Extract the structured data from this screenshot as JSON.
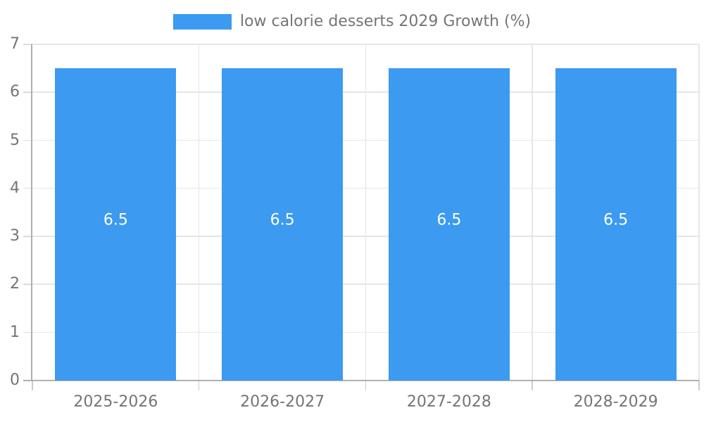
{
  "chart_data": {
    "type": "bar",
    "legend": {
      "position": "top"
    },
    "categories": [
      "2025-2026",
      "2026-2027",
      "2027-2028",
      "2028-2029"
    ],
    "series": [
      {
        "name": "low calorie desserts 2029 Growth (%)",
        "values": [
          6.5,
          6.5,
          6.5,
          6.5
        ],
        "color": "#3c9af0"
      }
    ],
    "value_labels": [
      "6.5",
      "6.5",
      "6.5",
      "6.5"
    ],
    "ylim": [
      0,
      7
    ],
    "yticks": [
      0,
      1,
      2,
      3,
      4,
      5,
      6,
      7
    ],
    "grid": true,
    "bar_width_ratio": 0.726,
    "colors": {
      "bar": "#3c9af0",
      "gridline": "#e6e6e6",
      "axis": "#b0b0b0",
      "tick": "#cccccc",
      "label_text": "#757575",
      "value_text": "#ffffff"
    }
  }
}
